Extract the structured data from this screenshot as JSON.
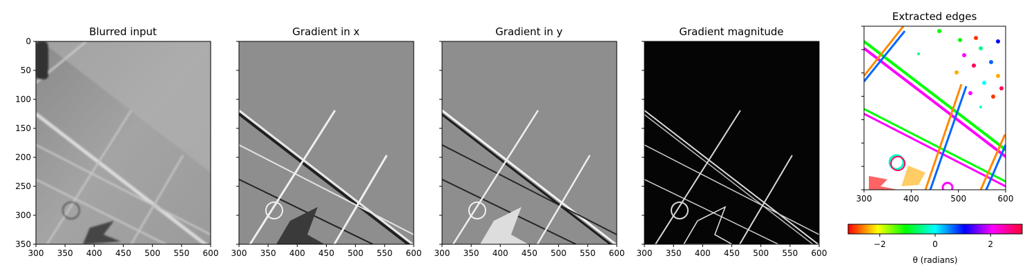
{
  "chart_data": [
    {
      "type": "image",
      "title": "Blurred input",
      "xlim": [
        300,
        600
      ],
      "ylim": [
        350,
        0
      ],
      "xticks": [
        300,
        350,
        400,
        450,
        500,
        550,
        600
      ],
      "yticks": [
        0,
        50,
        100,
        150,
        200,
        250,
        300,
        350
      ],
      "show_ytick_labels": true,
      "colormap": "gray",
      "style": "blurred"
    },
    {
      "type": "image",
      "title": "Gradient in x",
      "xlim": [
        300,
        600
      ],
      "ylim": [
        350,
        0
      ],
      "xticks": [
        300,
        350,
        400,
        450,
        500,
        550,
        600
      ],
      "yticks": [
        0,
        50,
        100,
        150,
        200,
        250,
        300,
        350
      ],
      "show_ytick_labels": false,
      "colormap": "gray",
      "style": "relief"
    },
    {
      "type": "image",
      "title": "Gradient in y",
      "xlim": [
        300,
        600
      ],
      "ylim": [
        350,
        0
      ],
      "xticks": [
        300,
        350,
        400,
        450,
        500,
        550,
        600
      ],
      "yticks": [
        0,
        50,
        100,
        150,
        200,
        250,
        300,
        350
      ],
      "show_ytick_labels": false,
      "colormap": "gray",
      "style": "relief"
    },
    {
      "type": "image",
      "title": "Gradient magnitude",
      "xlim": [
        300,
        600
      ],
      "ylim": [
        350,
        0
      ],
      "xticks": [
        300,
        350,
        400,
        450,
        500,
        550,
        600
      ],
      "yticks": [
        0,
        50,
        100,
        150,
        200,
        250,
        300,
        350
      ],
      "show_ytick_labels": false,
      "colormap": "gray",
      "style": "magnitude"
    },
    {
      "type": "image",
      "title": "Extracted edges",
      "xlim": [
        300,
        600
      ],
      "ylim": [
        350,
        0
      ],
      "xticks": [
        300,
        400,
        500,
        600
      ],
      "yticks": [
        0,
        50,
        100,
        150,
        200,
        250,
        300,
        350
      ],
      "show_ytick_labels": false,
      "colormap": "hsv",
      "style": "edges"
    }
  ],
  "colorbar": {
    "label": "θ (radians)",
    "range": [
      -3.14159,
      3.14159
    ],
    "ticks": [
      -2,
      0,
      2
    ],
    "tick_labels": [
      "−2",
      "0",
      "2"
    ],
    "colors": [
      "#ff0000",
      "#ffff00",
      "#00ff00",
      "#00ffff",
      "#0000ff",
      "#ff00ff",
      "#ff0033"
    ]
  }
}
